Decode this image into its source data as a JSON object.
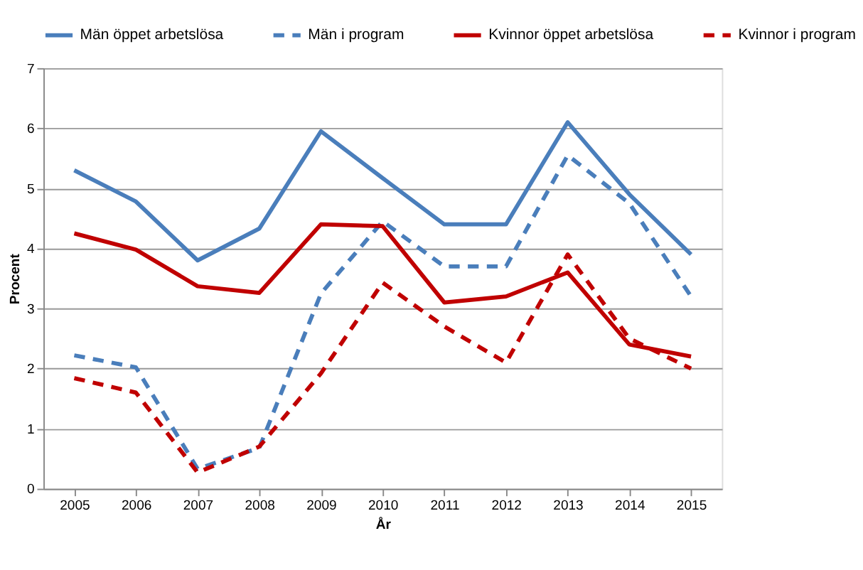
{
  "chart_data": {
    "type": "line",
    "xlabel": "År",
    "ylabel": "Procent",
    "categories": [
      "2005",
      "2006",
      "2007",
      "2008",
      "2009",
      "2010",
      "2011",
      "2012",
      "2013",
      "2014",
      "2015"
    ],
    "series": [
      {
        "name": "Män öppet arbetslösa",
        "color": "#4a7ebb",
        "line_style": "solid",
        "values": [
          5.3,
          4.78,
          3.8,
          4.33,
          5.95,
          5.17,
          4.4,
          4.4,
          6.1,
          4.9,
          3.9
        ]
      },
      {
        "name": "Män i program",
        "color": "#4a7ebb",
        "line_style": "dashed",
        "values": [
          2.22,
          2.02,
          0.33,
          0.68,
          3.25,
          4.45,
          3.7,
          3.7,
          5.55,
          4.75,
          3.2
        ]
      },
      {
        "name": "Kvinnor öppet arbetslösa",
        "color": "#c00000",
        "line_style": "solid",
        "values": [
          4.25,
          3.98,
          3.37,
          3.26,
          4.4,
          4.37,
          3.1,
          3.2,
          3.6,
          2.4,
          2.2
        ]
      },
      {
        "name": "Kvinnor i program",
        "color": "#c00000",
        "line_style": "dashed",
        "values": [
          1.84,
          1.6,
          0.27,
          0.7,
          1.92,
          3.43,
          2.7,
          2.1,
          3.9,
          2.5,
          2.0
        ]
      }
    ],
    "ylim": [
      0,
      7
    ],
    "yticks": [
      0,
      1,
      2,
      3,
      4,
      5,
      6,
      7
    ],
    "grid": "y",
    "legend": "top"
  }
}
